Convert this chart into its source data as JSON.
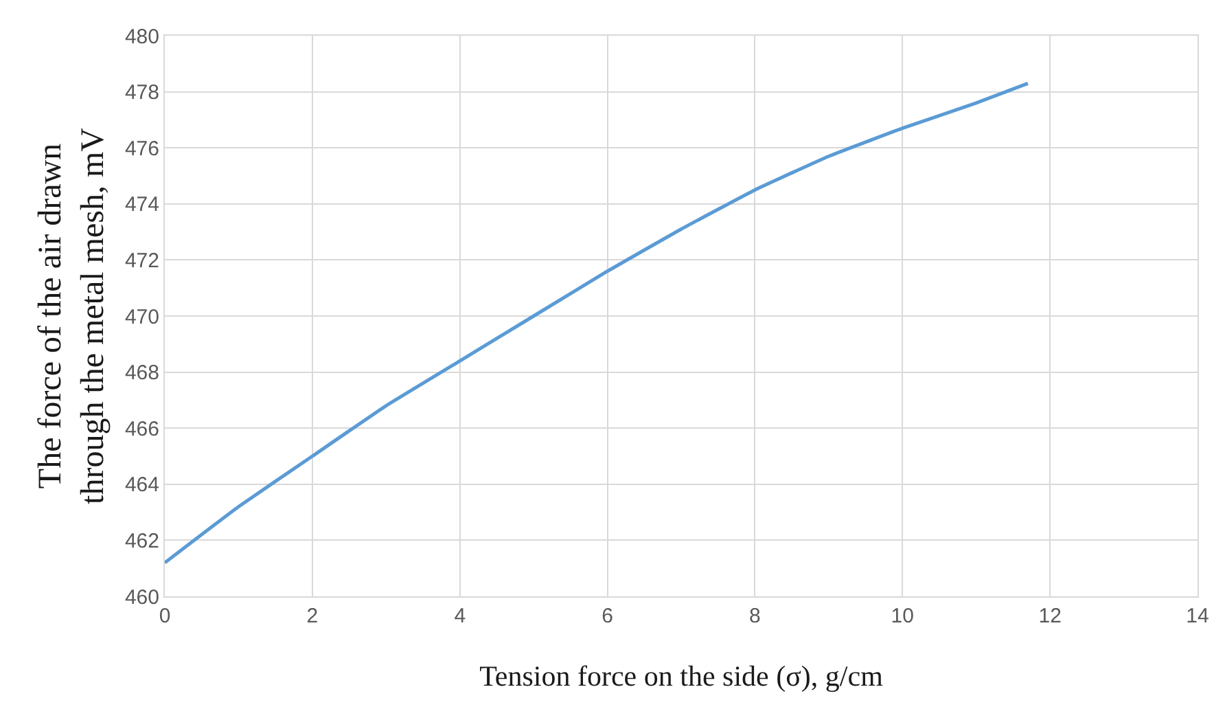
{
  "chart_data": {
    "type": "line",
    "xlabel": "Tension force on the side (σ), g/cm",
    "ylabel": "The force of the air drawn\nthrough the metal mesh, mV",
    "x": [
      0,
      1,
      2,
      3,
      4,
      5,
      6,
      7,
      8,
      9,
      10,
      11,
      11.7
    ],
    "series": [
      {
        "color": "#5b9bd5",
        "values": [
          461.2,
          463.2,
          465.0,
          466.8,
          468.4,
          470.0,
          471.6,
          473.1,
          474.5,
          475.7,
          476.7,
          477.6,
          478.3
        ]
      }
    ],
    "xlim": [
      0,
      14
    ],
    "xticks": [
      0,
      2,
      4,
      6,
      8,
      10,
      12,
      14
    ],
    "ylim": [
      460,
      480
    ],
    "yticks": [
      460,
      462,
      464,
      466,
      468,
      470,
      472,
      474,
      476,
      478,
      480
    ],
    "grid": true,
    "legend": false,
    "marker": "none",
    "line_style": "solid"
  }
}
